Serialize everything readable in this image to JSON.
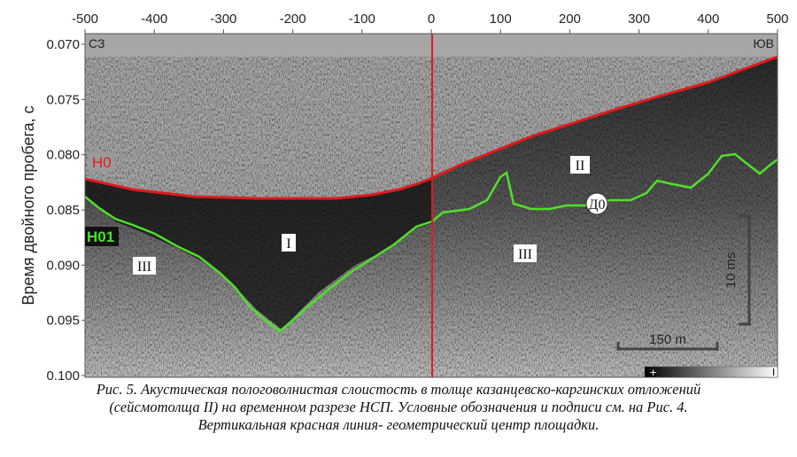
{
  "figure": {
    "y_axis_label": "Время двойного пробега, с",
    "x_ticks": [
      "-500",
      "-400",
      "-300",
      "-200",
      "-100",
      "0",
      "100",
      "200",
      "300",
      "400",
      "500"
    ],
    "y_ticks": [
      "0.070",
      "0.075",
      "0.080",
      "0.085",
      "0.090",
      "0.095",
      "0.100"
    ],
    "corner_left": "СЗ",
    "corner_right": "ЮВ",
    "horizon_labels": {
      "h0": "H0",
      "h01": "H01"
    },
    "unit_labels": [
      {
        "key": "I",
        "text": "I"
      },
      {
        "key": "II",
        "text": "II"
      },
      {
        "key": "III_left",
        "text": "III"
      },
      {
        "key": "III_right",
        "text": "III"
      }
    ],
    "marker_label": "Д0",
    "vertical_scale_label": "10 ms",
    "horizontal_scale_label": "150 m",
    "colorbar": {
      "plus": "+",
      "minus": "I"
    },
    "colors": {
      "h0": "#e11b1b",
      "h01": "#4fe02a",
      "center_line": "#e11b1b"
    }
  },
  "caption": {
    "line1": "Рис. 5. Акустическая пологоволнистая слоистость в толще казанцевско-каргинских отложений",
    "line2": "(сейсмотолща II) на временном разрезе НСП. Условные обозначения и подписи см. на Рис. 4.",
    "line3": "Вертикальная красная линия- геометрический центр площадки."
  }
}
